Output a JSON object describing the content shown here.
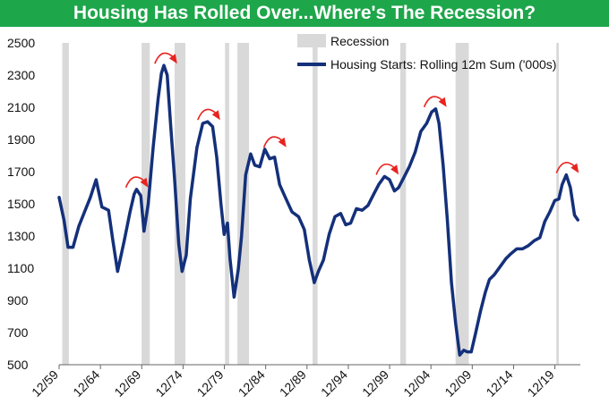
{
  "chart_data": {
    "type": "line",
    "title": "Housing Has Rolled Over...Where's The Recession?",
    "series": [
      {
        "name": "Housing Starts: Rolling 12m Sum ('000s)",
        "color": "#14307a",
        "x": [
          1959.92,
          1960.5,
          1961.0,
          1961.6,
          1962.3,
          1963.0,
          1963.7,
          1964.4,
          1965.1,
          1965.9,
          1966.4,
          1967.0,
          1967.8,
          1968.5,
          1969.0,
          1969.3,
          1969.8,
          1970.2,
          1970.7,
          1971.3,
          1971.9,
          1972.3,
          1972.6,
          1973.0,
          1973.4,
          1973.9,
          1974.4,
          1974.8,
          1975.3,
          1975.8,
          1976.6,
          1977.3,
          1977.9,
          1978.5,
          1979.0,
          1979.5,
          1979.9,
          1980.3,
          1980.6,
          1981.1,
          1981.6,
          1982.0,
          1982.5,
          1983.1,
          1983.6,
          1984.2,
          1984.8,
          1985.4,
          1986.0,
          1986.6,
          1987.3,
          1988.1,
          1988.9,
          1989.6,
          1990.2,
          1990.8,
          1991.3,
          1991.9,
          1992.6,
          1993.3,
          1994.0,
          1994.6,
          1995.2,
          1995.9,
          1996.6,
          1997.3,
          1998.0,
          1998.6,
          1999.3,
          1999.9,
          2000.5,
          2001.0,
          2001.6,
          2002.3,
          2003.0,
          2003.7,
          2004.4,
          2005.0,
          2005.5,
          2005.9,
          2006.4,
          2006.9,
          2007.4,
          2007.9,
          2008.4,
          2008.9,
          2009.3,
          2009.8,
          2010.3,
          2010.9,
          2011.5,
          2012.0,
          2012.6,
          2013.3,
          2014.0,
          2014.6,
          2015.3,
          2016.0,
          2016.7,
          2017.4,
          2018.1,
          2018.7,
          2019.3,
          2019.9,
          2020.4,
          2020.8,
          2021.3,
          2021.8,
          2022.3,
          2022.7
        ],
        "values": [
          1540,
          1400,
          1230,
          1230,
          1360,
          1450,
          1540,
          1650,
          1480,
          1460,
          1280,
          1080,
          1270,
          1450,
          1560,
          1590,
          1550,
          1330,
          1500,
          1850,
          2150,
          2310,
          2360,
          2300,
          2000,
          1650,
          1250,
          1080,
          1180,
          1530,
          1850,
          2000,
          2010,
          1980,
          1790,
          1500,
          1310,
          1380,
          1160,
          920,
          1090,
          1300,
          1680,
          1810,
          1740,
          1730,
          1840,
          1780,
          1790,
          1620,
          1540,
          1450,
          1420,
          1340,
          1150,
          1010,
          1080,
          1150,
          1310,
          1420,
          1440,
          1370,
          1380,
          1470,
          1460,
          1490,
          1560,
          1620,
          1670,
          1650,
          1580,
          1600,
          1660,
          1730,
          1820,
          1950,
          2000,
          2070,
          2090,
          2000,
          1740,
          1400,
          1010,
          760,
          560,
          590,
          580,
          580,
          690,
          830,
          950,
          1030,
          1060,
          1110,
          1160,
          1190,
          1220,
          1220,
          1240,
          1270,
          1290,
          1390,
          1450,
          1520,
          1530,
          1620,
          1680,
          1600,
          1430,
          1400
        ]
      }
    ],
    "recessions": [
      [
        1960.3,
        1961.1
      ],
      [
        1969.9,
        1970.9
      ],
      [
        1973.9,
        1975.2
      ],
      [
        1980.0,
        1980.5
      ],
      [
        1981.5,
        1982.9
      ],
      [
        1990.6,
        1991.2
      ],
      [
        2001.2,
        2001.9
      ],
      [
        2007.9,
        2009.5
      ],
      [
        2020.1,
        2020.4
      ]
    ],
    "peak_markers": [
      1969.3,
      1972.8,
      1978.0,
      1986.0,
      1999.6,
      2005.4,
      2021.4
    ],
    "ylim": [
      500,
      2500
    ],
    "yticks": [
      500,
      700,
      900,
      1100,
      1300,
      1500,
      1700,
      1900,
      2100,
      2300,
      2500
    ],
    "xlim": [
      1959.92,
      2023.0
    ],
    "xtick_values": [
      1959.92,
      1964.92,
      1969.92,
      1974.92,
      1979.92,
      1984.92,
      1989.92,
      1994.92,
      1999.92,
      2004.92,
      2009.92,
      2014.92,
      2019.92
    ],
    "xtick_labels": [
      "12/59",
      "12/64",
      "12/69",
      "12/74",
      "12/79",
      "12/84",
      "12/89",
      "12/94",
      "12/99",
      "12/04",
      "12/09",
      "12/14",
      "12/19"
    ],
    "legend": {
      "position": "top-right",
      "recession_label": "Recession",
      "series_label": "Housing Starts: Rolling 12m Sum ('000s)"
    },
    "colors": {
      "title_bg": "#1ea64a",
      "title_text": "#ffffff",
      "recession": "#d9d9d9",
      "line": "#14307a",
      "marker": "#e8231f"
    },
    "xlabel": "",
    "ylabel": "",
    "grid": false
  }
}
